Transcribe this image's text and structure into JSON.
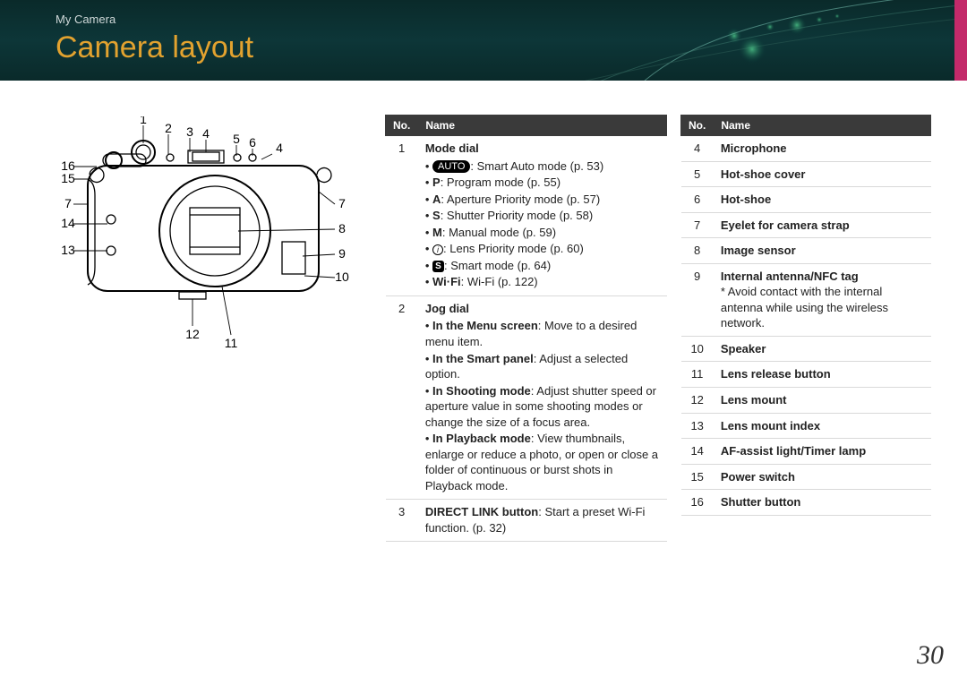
{
  "breadcrumb": "My Camera",
  "title": "Camera layout",
  "pageNumber": "30",
  "diagramLabels": {
    "n1": "1",
    "n2": "2",
    "n3": "3",
    "n4": "4",
    "n5": "5",
    "n6": "6",
    "n7": "7",
    "n8": "8",
    "n9": "9",
    "n10": "10",
    "n11": "11",
    "n12": "12",
    "n13": "13",
    "n14": "14",
    "n15": "15",
    "n16": "16",
    "n4b": "4",
    "n7b": "7"
  },
  "table1": {
    "header": {
      "no": "No.",
      "name": "Name"
    },
    "row1": {
      "no": "1",
      "title": "Mode dial",
      "autoBadge": "AUTO",
      "autoText": ": Smart Auto mode (p. 53)",
      "p": "P",
      "pText": ": Program mode (p. 55)",
      "a": "A",
      "aText": ": Aperture Priority mode (p. 57)",
      "s": "S",
      "sText": ": Shutter Priority mode (p. 58)",
      "m": "M",
      "mText": ": Manual mode (p. 59)",
      "iBadge": "i",
      "iText": ": Lens Priority mode (p. 60)",
      "sBadge": "S",
      "sBadgeText": ": Smart mode (p. 64)",
      "wifi": "Wi·Fi",
      "wifiText": ": Wi-Fi (p. 122)"
    },
    "row2": {
      "no": "2",
      "title": "Jog dial",
      "l1b": "In the Menu screen",
      "l1t": ": Move to a desired menu item.",
      "l2b": "In the Smart panel",
      "l2t": ": Adjust a selected option.",
      "l3b": "In Shooting mode",
      "l3t": ": Adjust shutter speed or aperture value in some shooting modes or change the size of a focus area.",
      "l4b": "In Playback mode",
      "l4t": ": View thumbnails, enlarge or reduce a photo, or open or close a folder of continuous or burst shots in Playback mode."
    },
    "row3": {
      "no": "3",
      "b": "DIRECT LINK button",
      "t": ": Start a preset Wi-Fi function. (p. 32)"
    }
  },
  "table2": {
    "header": {
      "no": "No.",
      "name": "Name"
    },
    "rows": [
      {
        "no": "4",
        "name": "Microphone"
      },
      {
        "no": "5",
        "name": "Hot-shoe cover"
      },
      {
        "no": "6",
        "name": "Hot-shoe"
      },
      {
        "no": "7",
        "name": "Eyelet for camera strap"
      },
      {
        "no": "8",
        "name": "Image sensor"
      },
      {
        "no": "9",
        "name": "Internal antenna/NFC tag",
        "note": "* Avoid contact with the internal antenna while using the wireless network."
      },
      {
        "no": "10",
        "name": "Speaker"
      },
      {
        "no": "11",
        "name": "Lens release button"
      },
      {
        "no": "12",
        "name": "Lens mount"
      },
      {
        "no": "13",
        "name": "Lens mount index"
      },
      {
        "no": "14",
        "name": "AF-assist light/Timer lamp"
      },
      {
        "no": "15",
        "name": "Power switch"
      },
      {
        "no": "16",
        "name": "Shutter button"
      }
    ]
  }
}
